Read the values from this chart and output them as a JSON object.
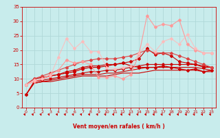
{
  "background_color": "#c8ecec",
  "grid_color": "#b0d8d8",
  "xlabel": "Vent moyen/en rafales ( km/h )",
  "xlabel_color": "#cc0000",
  "tick_color": "#cc0000",
  "xlim": [
    -0.5,
    23.5
  ],
  "ylim": [
    0,
    35
  ],
  "yticks": [
    0,
    5,
    10,
    15,
    20,
    25,
    30,
    35
  ],
  "xticks": [
    0,
    1,
    2,
    3,
    4,
    5,
    6,
    7,
    8,
    9,
    10,
    11,
    12,
    13,
    14,
    15,
    16,
    17,
    18,
    19,
    20,
    21,
    22,
    23
  ],
  "series": [
    {
      "x": [
        0,
        1,
        2,
        3,
        4,
        5,
        6,
        7,
        8,
        9,
        10,
        11,
        12,
        13,
        14,
        15,
        16,
        17,
        18,
        19,
        20,
        21,
        22,
        23
      ],
      "y": [
        4.5,
        8.5,
        9.0,
        9.0,
        9.5,
        10.0,
        10.5,
        11.0,
        11.0,
        11.0,
        11.0,
        11.5,
        12.0,
        12.0,
        12.0,
        12.5,
        13.0,
        13.0,
        13.0,
        13.0,
        13.0,
        13.0,
        12.5,
        12.5
      ],
      "color": "#cc0000",
      "lw": 0.8,
      "marker": null,
      "ms": 0,
      "alpha": 1.0
    },
    {
      "x": [
        0,
        1,
        2,
        3,
        4,
        5,
        6,
        7,
        8,
        9,
        10,
        11,
        12,
        13,
        14,
        15,
        16,
        17,
        18,
        19,
        20,
        21,
        22,
        23
      ],
      "y": [
        4.5,
        8.5,
        9.0,
        9.5,
        10.0,
        10.5,
        11.0,
        11.5,
        11.5,
        11.5,
        12.0,
        12.0,
        12.5,
        13.0,
        13.5,
        14.0,
        14.0,
        14.0,
        14.0,
        14.0,
        14.0,
        14.0,
        13.5,
        13.0
      ],
      "color": "#cc0000",
      "lw": 0.8,
      "marker": null,
      "ms": 0,
      "alpha": 1.0
    },
    {
      "x": [
        0,
        1,
        2,
        3,
        4,
        5,
        6,
        7,
        8,
        9,
        10,
        11,
        12,
        13,
        14,
        15,
        16,
        17,
        18,
        19,
        20,
        21,
        22,
        23
      ],
      "y": [
        4.5,
        9.0,
        9.5,
        10.0,
        10.5,
        11.0,
        11.5,
        12.0,
        12.5,
        12.5,
        13.0,
        13.0,
        13.5,
        14.0,
        14.5,
        15.0,
        15.0,
        15.0,
        15.0,
        15.0,
        15.0,
        15.0,
        14.5,
        14.0
      ],
      "color": "#cc0000",
      "lw": 0.8,
      "marker": "D",
      "ms": 1.8,
      "alpha": 1.0
    },
    {
      "x": [
        0,
        1,
        2,
        3,
        4,
        5,
        6,
        7,
        8,
        9,
        10,
        11,
        12,
        13,
        14,
        15,
        16,
        17,
        18,
        19,
        20,
        21,
        22,
        23
      ],
      "y": [
        4.5,
        9.0,
        10.0,
        11.0,
        11.5,
        12.5,
        13.0,
        14.0,
        14.5,
        14.5,
        15.0,
        15.0,
        15.5,
        16.0,
        17.0,
        20.5,
        18.5,
        19.0,
        18.0,
        16.0,
        15.5,
        15.0,
        14.0,
        14.0
      ],
      "color": "#cc0000",
      "lw": 0.8,
      "marker": "D",
      "ms": 2.0,
      "alpha": 1.0
    },
    {
      "x": [
        0,
        1,
        2,
        3,
        4,
        5,
        6,
        7,
        8,
        9,
        10,
        11,
        12,
        13,
        14,
        15,
        16,
        17,
        18,
        19,
        20,
        21,
        22,
        23
      ],
      "y": [
        8.0,
        10.0,
        10.5,
        11.0,
        11.5,
        12.0,
        12.5,
        13.5,
        14.0,
        14.0,
        14.5,
        15.0,
        15.5,
        14.5,
        14.0,
        14.0,
        14.0,
        14.5,
        14.0,
        13.5,
        13.0,
        13.5,
        12.5,
        13.0
      ],
      "color": "#cc0000",
      "lw": 0.9,
      "marker": "D",
      "ms": 2.0,
      "alpha": 1.0
    },
    {
      "x": [
        0,
        1,
        2,
        3,
        4,
        5,
        6,
        7,
        8,
        9,
        10,
        11,
        12,
        13,
        14,
        15,
        16,
        17,
        18,
        19,
        20,
        21,
        22,
        23
      ],
      "y": [
        8.0,
        10.0,
        11.0,
        12.0,
        13.0,
        14.0,
        15.0,
        16.0,
        16.5,
        17.0,
        17.0,
        17.0,
        17.5,
        18.0,
        19.0,
        20.0,
        19.0,
        19.0,
        19.0,
        18.0,
        17.0,
        16.0,
        15.0,
        14.0
      ],
      "color": "#dd4444",
      "lw": 0.8,
      "marker": "D",
      "ms": 2.0,
      "alpha": 1.0
    },
    {
      "x": [
        0,
        1,
        2,
        3,
        4,
        5,
        6,
        7,
        8,
        9,
        10,
        11,
        12,
        13,
        14,
        15,
        16,
        17,
        18,
        19,
        20,
        21,
        22,
        23
      ],
      "y": [
        8.0,
        9.0,
        10.0,
        11.5,
        13.0,
        16.5,
        15.5,
        16.0,
        15.0,
        10.5,
        10.5,
        11.0,
        10.0,
        11.5,
        18.5,
        32.0,
        28.0,
        29.0,
        28.5,
        30.5,
        22.0,
        20.0,
        19.0,
        19.0
      ],
      "color": "#ff9999",
      "lw": 0.8,
      "marker": "D",
      "ms": 2.0,
      "alpha": 1.0
    },
    {
      "x": [
        0,
        1,
        2,
        3,
        4,
        5,
        6,
        7,
        8,
        9,
        10,
        11,
        12,
        13,
        14,
        15,
        16,
        17,
        18,
        19,
        20,
        21,
        22,
        23
      ],
      "y": [
        8.0,
        9.5,
        10.0,
        11.0,
        17.5,
        24.0,
        20.5,
        23.0,
        19.5,
        19.5,
        14.0,
        13.5,
        14.0,
        14.5,
        19.0,
        22.0,
        19.5,
        23.0,
        24.0,
        22.0,
        25.5,
        20.5,
        19.0,
        19.0
      ],
      "color": "#ffbbbb",
      "lw": 0.8,
      "marker": "D",
      "ms": 2.0,
      "alpha": 0.85
    }
  ]
}
